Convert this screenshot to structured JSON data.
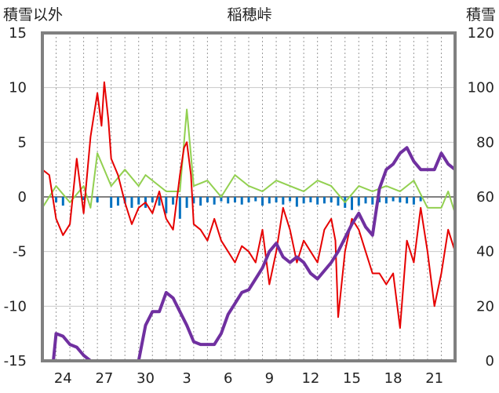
{
  "chart_data": {
    "type": "line",
    "title": "稲穂峠",
    "ylabel_left": "積雪以外",
    "ylabel_right": "積雪",
    "ylim_left": [
      -15,
      15
    ],
    "ylim_right": [
      0,
      120
    ],
    "yticks_left": [
      "15",
      "10",
      "5",
      "0",
      "-5",
      "-10",
      "-15"
    ],
    "yticks_right": [
      "120",
      "100",
      "80",
      "60",
      "40",
      "20",
      "0"
    ],
    "xlim": [
      0,
      30
    ],
    "xticks": [
      {
        "label": "24",
        "x": 1.5
      },
      {
        "label": "27",
        "x": 4.5
      },
      {
        "label": "30",
        "x": 7.5
      },
      {
        "label": "3",
        "x": 10.5
      },
      {
        "label": "6",
        "x": 13.5
      },
      {
        "label": "9",
        "x": 16.5
      },
      {
        "label": "12",
        "x": 19.5
      },
      {
        "label": "15",
        "x": 22.5
      },
      {
        "label": "18",
        "x": 25.5
      },
      {
        "label": "21",
        "x": 28.5
      }
    ],
    "colors": {
      "temperature": "#e60000",
      "wind": "#92d050",
      "precip": "#0070c0",
      "snow": "#7030a0",
      "frame": "#808080",
      "grid": "#999999"
    },
    "series": [
      {
        "key": "temperature",
        "axis": "left",
        "x": [
          0,
          0.5,
          1,
          1.5,
          2,
          2.5,
          3,
          3.5,
          4,
          4.3,
          4.5,
          4.8,
          5,
          5.5,
          6,
          6.5,
          7,
          7.5,
          8,
          8.5,
          9,
          9.5,
          10,
          10.3,
          10.5,
          10.8,
          11,
          11.5,
          12,
          12.5,
          13,
          13.5,
          14,
          14.5,
          15,
          15.5,
          16,
          16.5,
          17,
          17.5,
          18,
          18.5,
          19,
          19.5,
          20,
          20.5,
          21,
          21.3,
          21.5,
          22,
          22.5,
          23,
          23.5,
          24,
          24.5,
          25,
          25.5,
          26,
          26.5,
          27,
          27.5,
          28,
          28.5,
          29,
          29.5,
          30
        ],
        "y": [
          2.5,
          2,
          -2,
          -3.5,
          -2.5,
          3.5,
          -1.5,
          5.5,
          9.5,
          6.5,
          10.5,
          7,
          3.5,
          2,
          -0.5,
          -2.5,
          -1,
          -0.5,
          -1.5,
          0.5,
          -2,
          -3,
          2,
          4.5,
          5,
          2,
          -2.5,
          -3,
          -4,
          -2,
          -4,
          -5,
          -6,
          -4.5,
          -5,
          -6,
          -3,
          -8,
          -5,
          -1,
          -3,
          -6,
          -4,
          -5,
          -6,
          -3,
          -2,
          -4,
          -11,
          -5,
          -2,
          -3,
          -5,
          -7,
          -7,
          -8,
          -7,
          -12,
          -4,
          -6,
          -1,
          -5,
          -10,
          -7,
          -3,
          -5
        ]
      },
      {
        "key": "wind",
        "axis": "left",
        "x": [
          0,
          1,
          2,
          3,
          3.5,
          4,
          5,
          6,
          7,
          7.5,
          8,
          9,
          10,
          10.5,
          11,
          12,
          13,
          14,
          15,
          16,
          17,
          18,
          19,
          20,
          21,
          22,
          23,
          24,
          25,
          26,
          27,
          28,
          29,
          29.5,
          30
        ],
        "y": [
          -1,
          1,
          -0.5,
          1,
          -1,
          4,
          1,
          2.5,
          1,
          2,
          1.5,
          0.5,
          0.5,
          8,
          1,
          1.5,
          0,
          2,
          1,
          0.5,
          1.5,
          1,
          0.5,
          1.5,
          1,
          -0.5,
          1,
          0.5,
          1,
          0.5,
          1.5,
          -1,
          -1,
          0.5,
          -1.5
        ]
      },
      {
        "key": "precip",
        "axis": "left",
        "x": [
          1,
          1.5,
          3,
          4,
          5,
          5.5,
          6,
          6.5,
          7,
          7.5,
          8,
          8.5,
          9,
          9.5,
          10,
          10.5,
          11,
          11.5,
          12,
          12.5,
          13,
          13.5,
          14,
          14.5,
          15,
          15.5,
          16,
          16.5,
          17,
          17.5,
          18,
          18.5,
          19,
          19.5,
          20,
          20.5,
          21,
          21.5,
          22,
          22.5,
          23,
          23.5,
          24,
          24.5,
          25,
          25.5,
          26,
          26.5,
          27,
          27.5
        ],
        "y": [
          -0.5,
          -0.8,
          -0.3,
          -0.5,
          -1,
          -0.8,
          -0.6,
          -1,
          -0.7,
          -1,
          -0.5,
          -0.8,
          -1.5,
          -0.7,
          -2,
          -1,
          -0.6,
          -0.8,
          -0.5,
          -0.7,
          -0.4,
          -0.6,
          -0.5,
          -0.7,
          -0.5,
          -0.4,
          -0.8,
          -0.6,
          -0.5,
          -0.7,
          -0.4,
          -0.9,
          -0.6,
          -0.5,
          -0.7,
          -0.6,
          -0.5,
          -0.8,
          -1,
          -1.2,
          -0.8,
          -0.6,
          -0.7,
          -0.5,
          -0.6,
          -0.4,
          -0.5,
          -0.6,
          -0.7,
          -0.4
        ]
      },
      {
        "key": "snow",
        "axis": "right",
        "x": [
          0,
          0.5,
          0.8,
          1,
          1.5,
          2,
          2.5,
          3,
          3.5,
          4,
          4.5,
          5,
          5.5,
          6,
          6.5,
          7,
          7.5,
          8,
          8.5,
          9,
          9.5,
          10,
          10.5,
          11,
          11.5,
          12,
          12.5,
          13,
          13.5,
          14,
          14.5,
          15,
          15.5,
          16,
          16.5,
          17,
          17.5,
          18,
          18.5,
          19,
          19.5,
          20,
          20.5,
          21,
          21.5,
          22,
          22.5,
          23,
          23.5,
          24,
          24.5,
          25,
          25.5,
          26,
          26.5,
          27,
          27.5,
          28,
          28.5,
          29,
          29.5,
          30
        ],
        "y": [
          0,
          0,
          0,
          10,
          9,
          6,
          5,
          2,
          0,
          0,
          0,
          0,
          0,
          0,
          0,
          0,
          13,
          18,
          18,
          25,
          23,
          18,
          13,
          7,
          6,
          6,
          6,
          10,
          17,
          21,
          25,
          26,
          30,
          34,
          40,
          43,
          38,
          36,
          38,
          36,
          32,
          30,
          33,
          36,
          40,
          45,
          50,
          54,
          49,
          46,
          63,
          70,
          72,
          76,
          78,
          73,
          70,
          70,
          70,
          76,
          72,
          70
        ]
      }
    ]
  }
}
